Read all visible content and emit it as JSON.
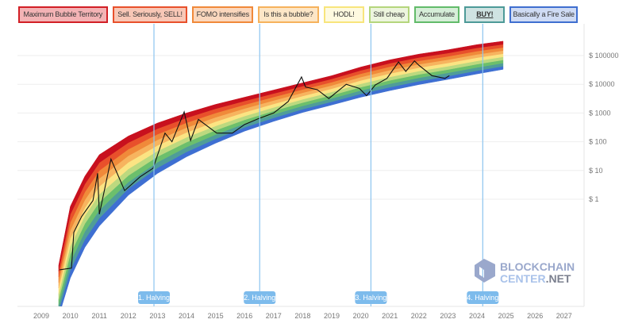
{
  "legend": [
    {
      "label": "Maximum Bubble Territory",
      "border": "#d21f26",
      "fill": "#f3b3b5"
    },
    {
      "label": "Sell. Seriously, SELL!",
      "border": "#e8502b",
      "fill": "#f8c7b6"
    },
    {
      "label": "FOMO intensifies",
      "border": "#f0893a",
      "fill": "#fbd7bd"
    },
    {
      "label": "Is this a bubble?",
      "border": "#f6b25c",
      "fill": "#fde6c6"
    },
    {
      "label": "HODL!",
      "border": "#f8e57c",
      "fill": "#fefae0"
    },
    {
      "label": "Still cheap",
      "border": "#b4d67c",
      "fill": "#edf5de"
    },
    {
      "label": "Accumulate",
      "border": "#62bb6a",
      "fill": "#d6eed8"
    },
    {
      "label": "BUY!",
      "border": "#4d9a98",
      "fill": "#cfe3e2"
    },
    {
      "label": "Basically a Fire Sale",
      "border": "#3f6fd0",
      "fill": "#cfdbf4"
    }
  ],
  "logo": {
    "line1": "BLOCKCHAIN",
    "line2a": "CENTER",
    "line2b": ".NET"
  },
  "chart_data": {
    "type": "line",
    "y_scale": "log",
    "ylim": [
      8e-05,
      1000000
    ],
    "xlim": [
      2008.2,
      2027.7
    ],
    "grid": true,
    "y_ticks": [
      {
        "value": 100000,
        "label": "$ 100000"
      },
      {
        "value": 10000,
        "label": "$ 10000"
      },
      {
        "value": 1000,
        "label": "$ 1000"
      },
      {
        "value": 100,
        "label": "$ 100"
      },
      {
        "value": 10,
        "label": "$ 10"
      },
      {
        "value": 1,
        "label": "$ 1"
      }
    ],
    "x_ticks": [
      "2009",
      "2010",
      "2011",
      "2012",
      "2013",
      "2014",
      "2015",
      "2016",
      "2017",
      "2018",
      "2019",
      "2020",
      "2021",
      "2022",
      "2023",
      "2024",
      "2025",
      "2026",
      "2027"
    ],
    "band_colors": [
      "#3e6fd2",
      "#4f9d98",
      "#6cbf6c",
      "#bcd97f",
      "#fbe483",
      "#f7b45f",
      "#f08a3a",
      "#e8502b",
      "#c8101e"
    ],
    "rainbow": {
      "x": [
        2009.6,
        2010,
        2010.5,
        2011,
        2012,
        2013,
        2014,
        2015,
        2016,
        2017,
        2018,
        2019,
        2020,
        2021,
        2022,
        2023,
        2024,
        2024.9
      ],
      "lower": [
        8.3e-05,
        0.0018,
        0.021,
        0.117,
        1.38,
        7.9,
        30,
        89,
        234,
        513,
        1047,
        1905,
        3548,
        6026,
        9772,
        14791,
        22909,
        33113
      ],
      "upper": [
        0.005,
        0.56,
        6.3,
        35.5,
        158,
        447,
        1000,
        1995,
        3548,
        6310,
        11220,
        19953,
        39811,
        70795,
        112202,
        158489,
        239883,
        316228
      ]
    },
    "price": {
      "x": [
        2009.63,
        2010.04,
        2010.12,
        2010.39,
        2010.78,
        2010.94,
        2011.0,
        2011.4,
        2011.87,
        2012.4,
        2012.85,
        2013.26,
        2013.5,
        2013.92,
        2014.14,
        2014.41,
        2015.04,
        2015.58,
        2016.0,
        2016.5,
        2017.0,
        2017.5,
        2017.96,
        2018.1,
        2018.5,
        2018.9,
        2019.5,
        2019.95,
        2020.2,
        2020.5,
        2020.9,
        2021.3,
        2021.55,
        2021.85,
        2022.0,
        2022.45,
        2022.9,
        2023.05
      ],
      "values": [
        0.0035,
        0.004,
        0.07,
        0.25,
        0.9,
        8,
        0.3,
        25,
        2,
        6,
        12,
        200,
        100,
        1100,
        110,
        600,
        200,
        200,
        400,
        650,
        1000,
        2500,
        18000,
        8000,
        6500,
        3200,
        10000,
        7200,
        4000,
        9500,
        16000,
        60000,
        28000,
        65000,
        46000,
        20000,
        16000,
        20000
      ]
    },
    "halvings": [
      {
        "x": 2012.88,
        "label": "1. Halving"
      },
      {
        "x": 2016.52,
        "label": "2. Halving"
      },
      {
        "x": 2020.35,
        "label": "3. Halving"
      },
      {
        "x": 2024.2,
        "label": "4. Halving"
      }
    ]
  }
}
